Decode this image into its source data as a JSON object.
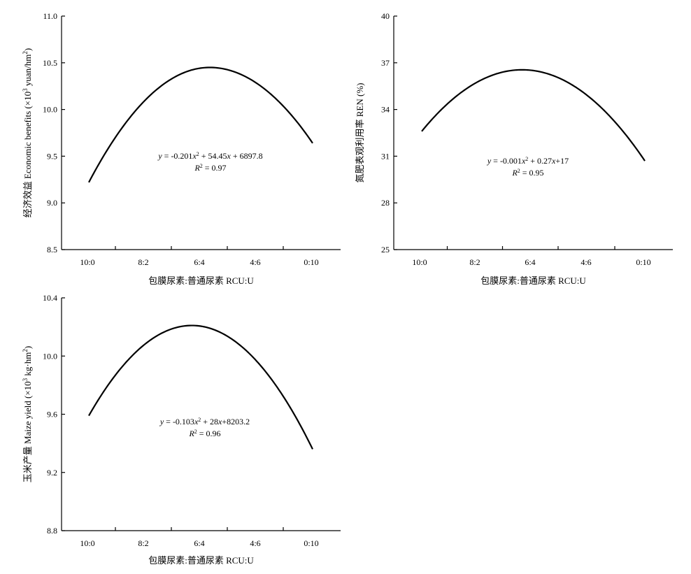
{
  "chart_data": [
    {
      "type": "line",
      "xlabel": "包膜尿素:普通尿素 RCU:U",
      "ylabel_main": "经济效益 Economic benefits (×10",
      "ylabel_sup": "3",
      "ylabel_tail": " yuan/hm",
      "ylabel_sup2": "2",
      "ylabel_end": ")",
      "categories": [
        "10:0",
        "8:2",
        "6:4",
        "4:6",
        "0:10"
      ],
      "x": [
        0,
        20,
        40,
        60,
        100
      ],
      "ylim": [
        8.5,
        11.0
      ],
      "yticks": [
        "8.5",
        "9.0",
        "9.5",
        "10.0",
        "10.5",
        "11.0"
      ],
      "ytick_values": [
        8.5,
        9.0,
        9.5,
        10.0,
        10.5,
        11.0
      ],
      "curve": {
        "x": [
          0,
          100
        ],
        "peak_x": 54,
        "start": 9.22,
        "peak": 10.45,
        "end": 9.64
      },
      "equation": {
        "text": "y = -0.201x² + 54.45x + 6897.8",
        "r2": "R² = 0.97"
      }
    },
    {
      "type": "line",
      "xlabel": "包膜尿素:普通尿素 RCU:U",
      "ylabel_main": "氮肥表观利用率 REN (%)",
      "categories": [
        "10:0",
        "8:2",
        "6:4",
        "4:6",
        "0:10"
      ],
      "x": [
        0,
        20,
        40,
        60,
        100
      ],
      "ylim": [
        25,
        40
      ],
      "yticks": [
        "25",
        "28",
        "31",
        "34",
        "37",
        "40"
      ],
      "ytick_values": [
        25,
        28,
        31,
        34,
        37,
        40
      ],
      "curve": {
        "x": [
          0,
          100
        ],
        "peak_x": 45,
        "start": 32.6,
        "peak": 36.55,
        "end": 30.7
      },
      "equation": {
        "text": "y = -0.001x² + 0.27x+17",
        "r2": "R² = 0.95"
      }
    },
    {
      "type": "line",
      "xlabel": "包膜尿素:普通尿素 RCU:U",
      "ylabel_main": "玉米产量 Maize yield (×10",
      "ylabel_sup": "3",
      "ylabel_tail": " kg·hm",
      "ylabel_sup2": "2",
      "ylabel_end": ")",
      "categories": [
        "10:0",
        "8:2",
        "6:4",
        "4:6",
        "0:10"
      ],
      "x": [
        0,
        20,
        40,
        60,
        100
      ],
      "ylim": [
        8.8,
        10.4
      ],
      "yticks": [
        "8.8",
        "9.2",
        "9.6",
        "10.0",
        "10.4"
      ],
      "ytick_values": [
        8.8,
        9.2,
        9.6,
        10.0,
        10.4
      ],
      "curve": {
        "x": [
          0,
          100
        ],
        "peak_x": 46,
        "start": 9.59,
        "peak": 10.21,
        "end": 9.36
      },
      "equation": {
        "text": "y = -0.103x² + 28x+8203.2",
        "r2": "R² = 0.96"
      }
    }
  ]
}
